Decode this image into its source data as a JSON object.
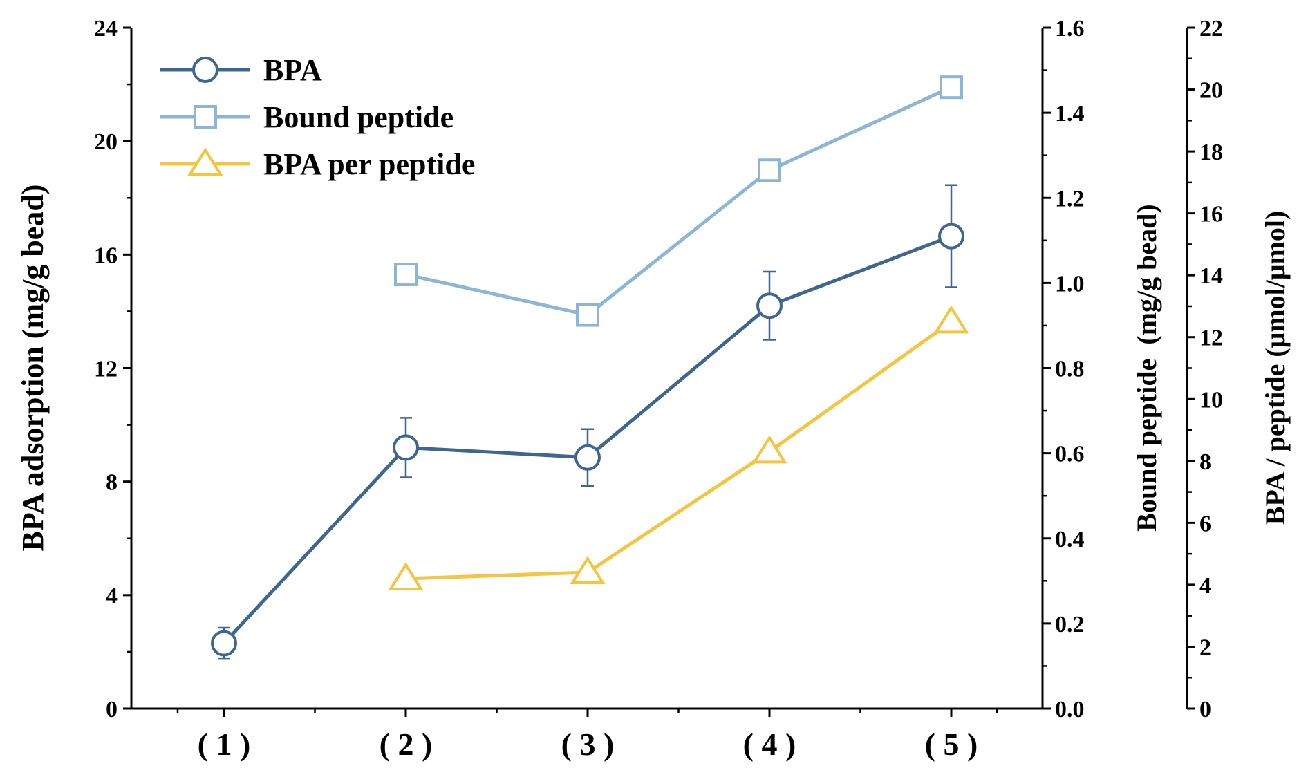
{
  "chart_data": {
    "type": "line",
    "title": "",
    "categories": [
      "( 1 )",
      "( 2 )",
      "( 3 )",
      "( 4 )",
      "( 5 )"
    ],
    "axes": {
      "left": {
        "label": "BPA adsorption (mg/g bead)",
        "range": [
          0,
          24
        ],
        "ticks": [
          "0",
          "4",
          "8",
          "12",
          "16",
          "20",
          "24"
        ]
      },
      "right1": {
        "label": "Bound peptide  (mg/g bead)",
        "range": [
          0,
          1.6
        ],
        "ticks": [
          "0.0",
          "0.2",
          "0.4",
          "0.6",
          "0.8",
          "1.0",
          "1.2",
          "1.4",
          "1.6"
        ]
      },
      "right2": {
        "label": "BPA / peptide (μmol/μmol)",
        "range": [
          0,
          22
        ],
        "ticks": [
          "0",
          "2",
          "4",
          "6",
          "8",
          "10",
          "12",
          "14",
          "16",
          "18",
          "20",
          "22"
        ]
      }
    },
    "series": [
      {
        "name": "BPA",
        "axis": "left",
        "marker": "circle",
        "color": "#3f6591",
        "values": [
          2.3,
          9.2,
          8.85,
          14.2,
          16.65
        ],
        "error": [
          0.55,
          1.05,
          1.0,
          1.2,
          1.8
        ]
      },
      {
        "name": "Bound peptide",
        "axis": "right1",
        "marker": "square",
        "color": "#8db5d6",
        "values": [
          null,
          1.02,
          0.925,
          1.265,
          1.46
        ]
      },
      {
        "name": "BPA per peptide",
        "axis": "right2",
        "marker": "triangle",
        "color": "#f3c540",
        "values": [
          null,
          4.2,
          4.4,
          8.3,
          12.5
        ]
      }
    ],
    "legend": {
      "position": "top-left",
      "entries": [
        "BPA",
        "Bound peptide",
        "BPA per peptide"
      ]
    }
  }
}
